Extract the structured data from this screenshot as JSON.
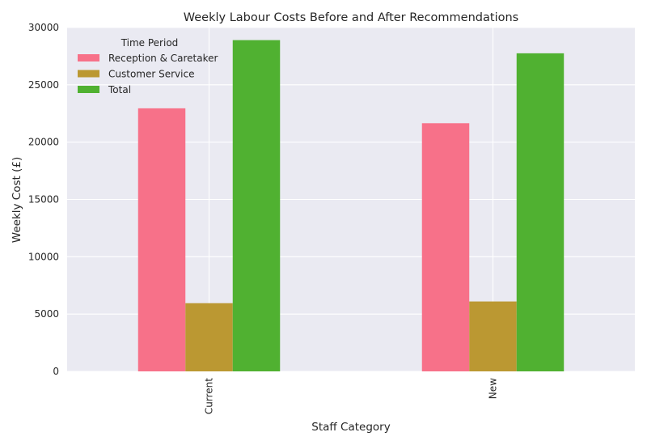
{
  "chart_data": {
    "type": "bar",
    "title": "Weekly Labour Costs Before and After Recommendations",
    "xlabel": "Staff Category",
    "ylabel": "Weekly Cost (£)",
    "categories": [
      "Current",
      "New"
    ],
    "series": [
      {
        "name": "Reception & Caretaker",
        "values": [
          22950,
          21650
        ],
        "color": "#f77189"
      },
      {
        "name": "Customer Service",
        "values": [
          5950,
          6100
        ],
        "color": "#bb9832"
      },
      {
        "name": "Total",
        "values": [
          28900,
          27750
        ],
        "color": "#50b131"
      }
    ],
    "ylim": [
      0,
      30000
    ],
    "yticks": [
      "0",
      "5000",
      "10000",
      "15000",
      "20000",
      "25000",
      "30000"
    ],
    "legend": {
      "title": "Time Period",
      "placement": "top-left"
    },
    "grid": true,
    "style": {
      "plot_background": "#eaeaf2",
      "grid_color": "#ffffff"
    }
  }
}
